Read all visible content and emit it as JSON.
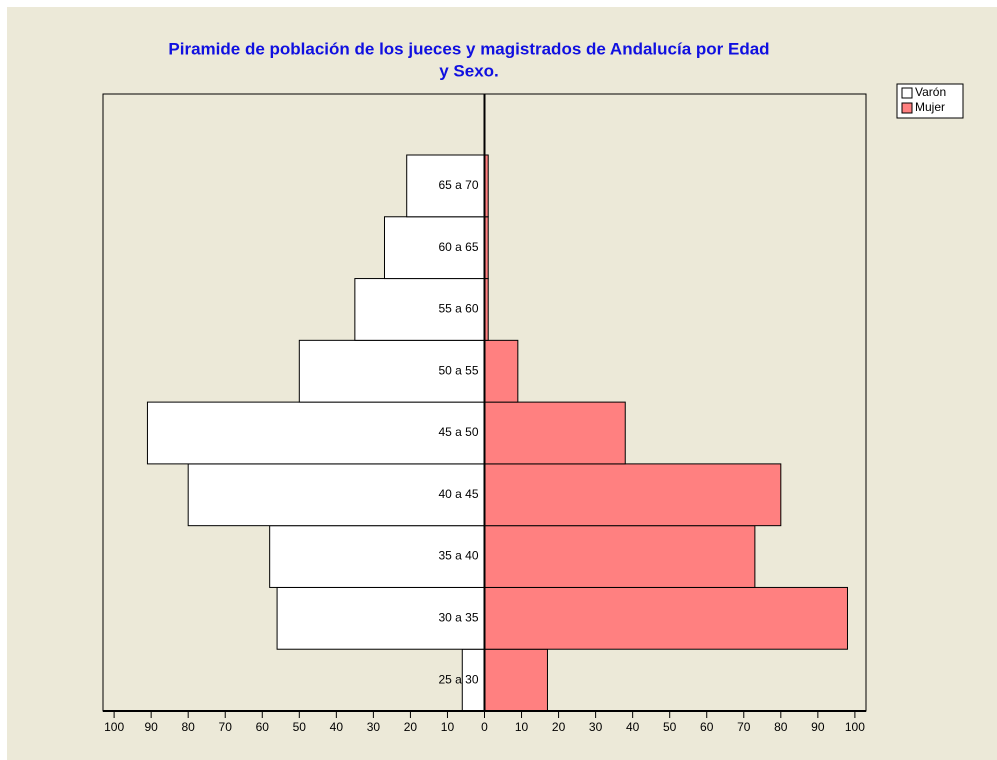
{
  "chart_data": {
    "type": "pyramid",
    "title": [
      "Piramide de población de los jueces y magistrados de Andalucía por Edad",
      "y Sexo."
    ],
    "categories": [
      "25 a 30",
      "30  a 35",
      "35 a 40",
      "40 a 45",
      "45 a 50",
      "50 a 55",
      "55 a 60",
      "60 a 65",
      "65 a 70"
    ],
    "series": [
      {
        "name": "Varón",
        "color": "#ffffff",
        "values": [
          -6,
          -56,
          -58,
          -80,
          -91,
          -50,
          -35,
          -27,
          -21
        ]
      },
      {
        "name": "Mujer",
        "color": "#ff8080",
        "values": [
          17,
          98,
          73,
          80,
          38,
          9,
          1,
          1,
          1
        ]
      }
    ],
    "xlim": [
      -103,
      103
    ],
    "xticks": [
      {
        "value": -100,
        "label": "100"
      },
      {
        "value": -90,
        "label": "90"
      },
      {
        "value": -80,
        "label": "80"
      },
      {
        "value": -70,
        "label": "70"
      },
      {
        "value": -60,
        "label": "60"
      },
      {
        "value": -50,
        "label": "50"
      },
      {
        "value": -40,
        "label": "40"
      },
      {
        "value": -30,
        "label": "30"
      },
      {
        "value": -20,
        "label": "20"
      },
      {
        "value": -10,
        "label": "10"
      },
      0,
      10,
      20,
      30,
      40,
      50,
      60,
      70,
      80,
      90,
      100
    ],
    "legend": "top-right"
  }
}
